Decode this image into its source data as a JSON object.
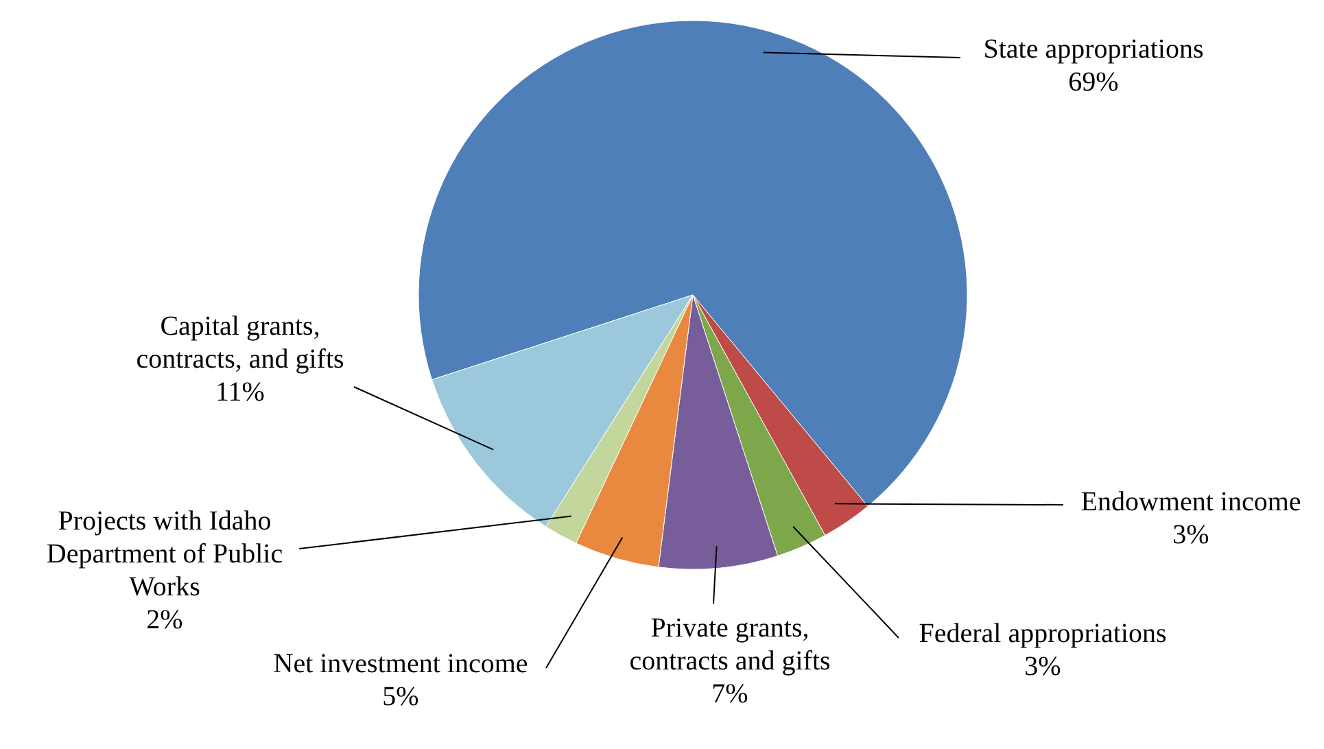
{
  "chart_data": {
    "type": "pie",
    "categories": [
      "State appropriations",
      "Endowment income",
      "Federal appropriations",
      "Private grants, contracts and gifts",
      "Net investment income",
      "Projects with Idaho Department of Public Works",
      "Capital grants, contracts, and gifts"
    ],
    "values": [
      69,
      3,
      3,
      7,
      5,
      2,
      11
    ],
    "value_labels": [
      "69%",
      "3%",
      "3%",
      "7%",
      "5%",
      "2%",
      "11%"
    ],
    "colors": [
      "#4f7fb8",
      "#bf4b48",
      "#7ea64a",
      "#775d99",
      "#e8893f",
      "#c3d69b",
      "#9cc8dc"
    ]
  }
}
